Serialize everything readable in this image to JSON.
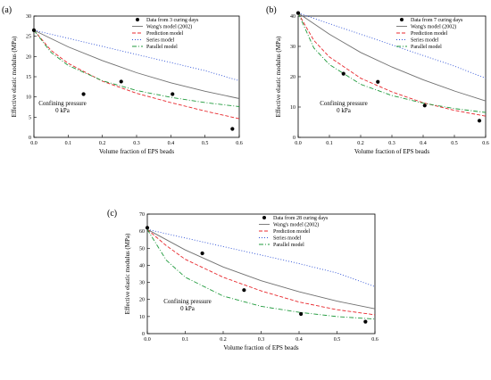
{
  "chart_data": [
    {
      "type": "line",
      "panel_label": "(a)",
      "xlabel": "Volume fraction of EPS beads",
      "ylabel": "Effective elastic modulus (MPa)",
      "xlim": [
        0,
        0.6
      ],
      "ylim": [
        0,
        30
      ],
      "xticks": [
        "0.0",
        "0.1",
        "0.2",
        "0.3",
        "0.4",
        "0.5",
        "0.6"
      ],
      "yticks": [
        "0",
        "5",
        "10",
        "15",
        "20",
        "25",
        "30"
      ],
      "annotation_lines": [
        "Confining pressure",
        "0 kPa"
      ],
      "legend_position": "top-right",
      "scatter": {
        "name": "Data from 3 curing days",
        "x": [
          0.0,
          0.145,
          0.255,
          0.405,
          0.58
        ],
        "y": [
          26.5,
          10.7,
          13.8,
          10.7,
          2.1
        ]
      },
      "series": [
        {
          "name": "Wang's model (2002)",
          "style": "solid",
          "color": "#707070",
          "x": [
            0,
            0.1,
            0.2,
            0.3,
            0.4,
            0.5,
            0.6
          ],
          "y": [
            26.5,
            22.4,
            19.0,
            16.0,
            13.5,
            11.4,
            9.6
          ]
        },
        {
          "name": "Prediction model",
          "style": "dashed",
          "color": "#e8282d",
          "x": [
            0,
            0.05,
            0.1,
            0.2,
            0.3,
            0.4,
            0.5,
            0.6
          ],
          "y": [
            26.5,
            21.5,
            18.3,
            13.9,
            10.9,
            8.6,
            6.5,
            4.6
          ]
        },
        {
          "name": "Series model",
          "style": "dotted",
          "color": "#2b4fd6",
          "x": [
            0,
            0.1,
            0.2,
            0.3,
            0.4,
            0.5,
            0.6
          ],
          "y": [
            26.5,
            24.5,
            22.5,
            20.5,
            18.5,
            16.5,
            14.0
          ]
        },
        {
          "name": "Parallel model",
          "style": "dashdot",
          "color": "#1f9a3c",
          "x": [
            0,
            0.05,
            0.1,
            0.2,
            0.3,
            0.4,
            0.5,
            0.6
          ],
          "y": [
            26.5,
            21.0,
            17.8,
            14.0,
            11.6,
            9.9,
            8.6,
            7.6
          ]
        }
      ]
    },
    {
      "type": "line",
      "panel_label": "(b)",
      "xlabel": "Volume fraction of EPS beads",
      "ylabel": "Effective elastic modulus (MPa)",
      "xlim": [
        0,
        0.6
      ],
      "ylim": [
        0,
        40
      ],
      "xticks": [
        "0.0",
        "0.1",
        "0.2",
        "0.3",
        "0.4",
        "0.5",
        "0.6"
      ],
      "yticks": [
        "0",
        "10",
        "20",
        "30",
        "40"
      ],
      "annotation_lines": [
        "Confining pressure",
        "0 kPa"
      ],
      "legend_position": "top-right",
      "scatter": {
        "name": "Data from 7 curing days",
        "x": [
          0.0,
          0.145,
          0.255,
          0.405,
          0.58
        ],
        "y": [
          41.0,
          21.0,
          18.3,
          10.5,
          5.5
        ]
      },
      "series": [
        {
          "name": "Wang's model (2002)",
          "style": "solid",
          "color": "#707070",
          "x": [
            0,
            0.1,
            0.2,
            0.3,
            0.4,
            0.5,
            0.6
          ],
          "y": [
            41.0,
            34.0,
            28.0,
            23.2,
            19.0,
            15.3,
            12.0
          ]
        },
        {
          "name": "Prediction model",
          "style": "dashed",
          "color": "#e8282d",
          "x": [
            0,
            0.05,
            0.1,
            0.2,
            0.3,
            0.4,
            0.5,
            0.6
          ],
          "y": [
            41.0,
            32.0,
            26.5,
            19.5,
            15.0,
            11.4,
            8.9,
            7.0
          ]
        },
        {
          "name": "Series model",
          "style": "dotted",
          "color": "#2b4fd6",
          "x": [
            0,
            0.1,
            0.2,
            0.3,
            0.4,
            0.5,
            0.6
          ],
          "y": [
            41.0,
            37.5,
            34.0,
            30.5,
            27.0,
            23.5,
            19.5
          ]
        },
        {
          "name": "Parallel model",
          "style": "dashdot",
          "color": "#1f9a3c",
          "x": [
            0,
            0.05,
            0.1,
            0.2,
            0.3,
            0.4,
            0.5,
            0.6
          ],
          "y": [
            41.0,
            29.5,
            24.0,
            17.5,
            13.8,
            11.3,
            9.5,
            8.2
          ]
        }
      ]
    },
    {
      "type": "line",
      "panel_label": "(c)",
      "xlabel": "Volume fraction of EPS beads",
      "ylabel": "Effective elastic modulus (MPa)",
      "xlim": [
        0,
        0.6
      ],
      "ylim": [
        0,
        70
      ],
      "xticks": [
        "0.0",
        "0.1",
        "0.2",
        "0.3",
        "0.4",
        "0.5",
        "0.6"
      ],
      "yticks": [
        "0",
        "10",
        "20",
        "30",
        "40",
        "50",
        "60",
        "70"
      ],
      "annotation_lines": [
        "Confining pressure",
        "0 kPa"
      ],
      "legend_position": "top-right",
      "scatter": {
        "name": "Data from 28 curing days",
        "x": [
          0.0,
          0.145,
          0.255,
          0.405,
          0.575
        ],
        "y": [
          62.0,
          47.0,
          25.5,
          11.5,
          7.0
        ]
      },
      "series": [
        {
          "name": "Wang's model (2002)",
          "style": "solid",
          "color": "#707070",
          "x": [
            0,
            0.1,
            0.2,
            0.3,
            0.4,
            0.5,
            0.6
          ],
          "y": [
            61.0,
            49.0,
            39.0,
            31.0,
            24.5,
            19.0,
            14.5
          ]
        },
        {
          "name": "Prediction model",
          "style": "dashed",
          "color": "#e8282d",
          "x": [
            0,
            0.05,
            0.1,
            0.2,
            0.3,
            0.4,
            0.5,
            0.6
          ],
          "y": [
            61.0,
            51.5,
            43.5,
            33.0,
            25.0,
            18.5,
            14.0,
            11.0
          ]
        },
        {
          "name": "Series model",
          "style": "dotted",
          "color": "#2b4fd6",
          "x": [
            0,
            0.1,
            0.2,
            0.3,
            0.4,
            0.5,
            0.6
          ],
          "y": [
            61.0,
            56.0,
            51.0,
            46.0,
            41.0,
            35.5,
            27.5
          ]
        },
        {
          "name": "Parallel model",
          "style": "dashdot",
          "color": "#1f9a3c",
          "x": [
            0,
            0.05,
            0.1,
            0.2,
            0.3,
            0.4,
            0.5,
            0.6
          ],
          "y": [
            61.0,
            43.0,
            33.0,
            22.0,
            16.0,
            12.5,
            10.0,
            8.5
          ]
        }
      ]
    }
  ]
}
